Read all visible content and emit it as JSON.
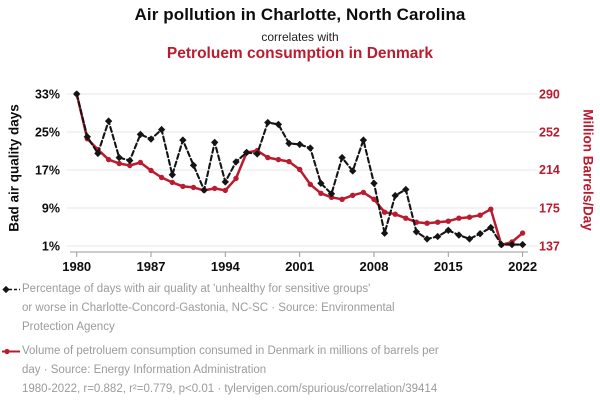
{
  "header": {
    "title": "Air pollution in Charlotte, North Carolina",
    "connector": "correlates with",
    "subtitle": "Petroluem consumption in Denmark"
  },
  "colors": {
    "accent_red": "#bb1b2f",
    "series_black": "#141414",
    "legend_gray": "#9b9b9b",
    "gridline": "#e7e7e7",
    "axis_line": "#999999"
  },
  "chart_data": {
    "type": "line",
    "title": "Air pollution in Charlotte, North Carolina correlates with Petroluem consumption in Denmark",
    "x": [
      1980,
      1981,
      1982,
      1983,
      1984,
      1985,
      1986,
      1987,
      1988,
      1989,
      1990,
      1991,
      1992,
      1993,
      1994,
      1995,
      1996,
      1997,
      1998,
      1999,
      2000,
      2001,
      2002,
      2003,
      2004,
      2005,
      2006,
      2007,
      2008,
      2009,
      2010,
      2011,
      2012,
      2013,
      2014,
      2015,
      2016,
      2017,
      2018,
      2019,
      2020,
      2021,
      2022
    ],
    "x_ticks": [
      1980,
      1987,
      1994,
      2001,
      2008,
      2015,
      2022
    ],
    "left_axis": {
      "label": "Bad air quality days",
      "ticks": [
        33,
        25,
        17,
        9,
        1
      ],
      "unit": "%",
      "range": [
        1,
        33
      ]
    },
    "right_axis": {
      "label": "Million Barrels/Day",
      "ticks": [
        290,
        252,
        214,
        175,
        137
      ],
      "range": [
        137,
        290
      ]
    },
    "grid": "horizontal",
    "legend_position": "bottom",
    "series": [
      {
        "name": "Percentage of days with air quality at 'unhealthy for sensitive groups' or worse in Charlotte-Concord-Gastonia, NC-SC",
        "axis": "left",
        "line_style": "dashed",
        "marker": "diamond",
        "color": "#141414",
        "values": [
          33,
          24,
          20.5,
          27.3,
          19.6,
          19,
          24.5,
          23.5,
          25.5,
          16,
          23.3,
          18,
          12.8,
          22.8,
          14.5,
          18.7,
          20.7,
          20.4,
          27,
          26.6,
          22.6,
          22.4,
          21.6,
          14.2,
          12,
          19.6,
          16.8,
          23.3,
          14.2,
          3.7,
          11.6,
          12.9,
          4,
          2.5,
          3,
          4.3,
          3.3,
          2.5,
          3.6,
          4.9,
          1.3,
          1.3,
          1.3
        ]
      },
      {
        "name": "Volume of petroluem consumption consumed in Denmark in millions of barrels per day",
        "axis": "right",
        "line_style": "solid",
        "marker": "circle",
        "color": "#bb1b2f",
        "values": [
          290,
          245,
          234,
          224,
          220,
          218,
          221,
          213,
          206,
          201,
          197,
          196,
          193,
          195,
          193,
          205,
          231,
          233,
          226,
          224,
          222,
          214,
          199,
          190,
          186,
          184,
          188,
          191,
          184,
          171,
          169,
          165,
          161,
          160,
          161,
          162,
          165,
          166,
          168,
          174,
          138,
          141,
          150
        ]
      }
    ],
    "stats": {
      "years": "1980-2022",
      "r": "0.882",
      "r2": "0.779",
      "p": "<0.01"
    }
  },
  "legend": {
    "series1_lines": [
      "Percentage of days with air quality at 'unhealthy for sensitive groups'",
      "or worse in Charlotte-Concord-Gastonia, NC-SC · Source: Environmental",
      "Protection Agency"
    ],
    "series2_lines": [
      "Volume of petroluem consumption consumed in Denmark in millions of barrels per",
      "day · Source: Energy Information Administration"
    ],
    "footer": "1980-2022, r=0.882, r²=0.779, p<0.01 · tylervigen.com/spurious/correlation/39414"
  }
}
